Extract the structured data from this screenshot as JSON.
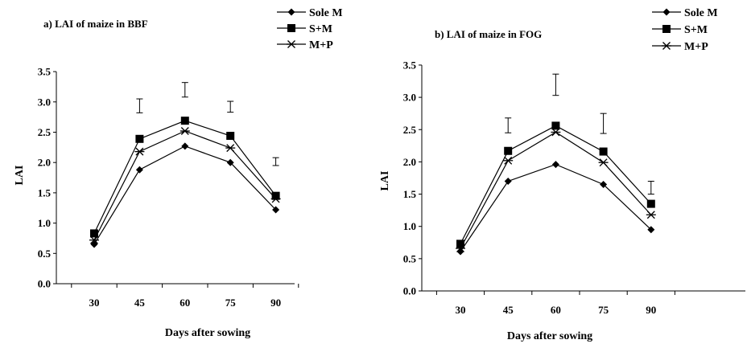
{
  "chart_data": [
    {
      "type": "line",
      "title": "a) LAI of maize in BBF",
      "xlabel": "Days after sowing",
      "ylabel": "LAI",
      "x": [
        30,
        45,
        60,
        75,
        90
      ],
      "x_ticks": [
        "30",
        "45",
        "60",
        "75",
        "90"
      ],
      "y_ticks": [
        "0.0",
        "0.5",
        "1.0",
        "1.5",
        "2.0",
        "2.5",
        "3.0",
        "3.5"
      ],
      "ylim": [
        0,
        3.5
      ],
      "grid": false,
      "legend_position": "top-right",
      "series": [
        {
          "name": "Sole M",
          "marker": "diamond",
          "values": [
            0.65,
            1.88,
            2.27,
            2.0,
            1.22
          ]
        },
        {
          "name": "S+M",
          "marker": "square",
          "values": [
            0.83,
            2.39,
            2.69,
            2.44,
            1.45
          ]
        },
        {
          "name": "M+P",
          "marker": "asterisk",
          "values": [
            0.72,
            2.18,
            2.52,
            2.24,
            1.4
          ]
        }
      ],
      "error_bars": [
        {
          "x": 45,
          "low": 2.82,
          "high": 3.05
        },
        {
          "x": 60,
          "low": 3.08,
          "high": 3.32
        },
        {
          "x": 75,
          "low": 2.83,
          "high": 3.01
        },
        {
          "x": 90,
          "low": 1.95,
          "high": 2.08
        }
      ]
    },
    {
      "type": "line",
      "title": "b) LAI of maize in FOG",
      "xlabel": "Days after sowing",
      "ylabel": "LAI",
      "x": [
        30,
        45,
        60,
        75,
        90
      ],
      "x_ticks": [
        "30",
        "45",
        "60",
        "75",
        "90"
      ],
      "y_ticks": [
        "0.0",
        "0.5",
        "1.0",
        "1.5",
        "2.0",
        "2.5",
        "3.0",
        "3.5"
      ],
      "ylim": [
        0,
        3.5
      ],
      "grid": false,
      "legend_position": "top-right",
      "series": [
        {
          "name": "Sole M",
          "marker": "diamond",
          "values": [
            0.61,
            1.7,
            1.96,
            1.65,
            0.95
          ]
        },
        {
          "name": "S+M",
          "marker": "square",
          "values": [
            0.73,
            2.17,
            2.56,
            2.16,
            1.35
          ]
        },
        {
          "name": "M+P",
          "marker": "asterisk",
          "values": [
            0.66,
            2.02,
            2.46,
            1.99,
            1.18
          ]
        }
      ],
      "error_bars": [
        {
          "x": 45,
          "low": 2.45,
          "high": 2.68
        },
        {
          "x": 60,
          "low": 3.03,
          "high": 3.36
        },
        {
          "x": 75,
          "low": 2.44,
          "high": 2.75
        },
        {
          "x": 90,
          "low": 1.5,
          "high": 1.7
        }
      ]
    }
  ]
}
